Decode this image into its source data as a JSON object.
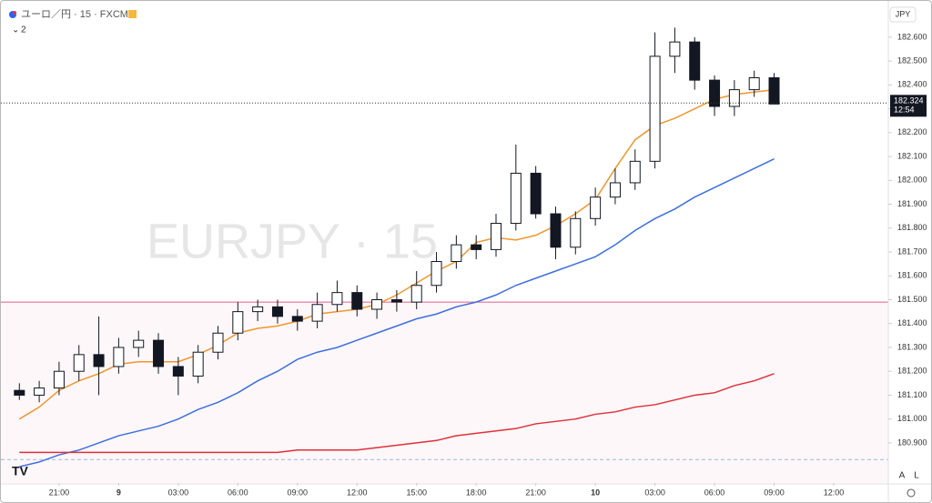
{
  "chart_data": {
    "type": "candlestick",
    "header": "ユーロ／円 · 15 · FXCM",
    "indicator_count": "2",
    "watermark": "EURJPY · 15",
    "currency": "JPY",
    "scale_buttons": [
      "A",
      "L"
    ],
    "countdown": "12:54",
    "x": [
      -5,
      -4,
      -3,
      -2,
      -1,
      0,
      1,
      2,
      3,
      4,
      5,
      6,
      7,
      8,
      9,
      10,
      11,
      12,
      13,
      14,
      15,
      16,
      17,
      18,
      19,
      20,
      21,
      22,
      23,
      24,
      25,
      26,
      27,
      28,
      29,
      30,
      31,
      32,
      33
    ],
    "open": [
      181.12,
      181.1,
      181.13,
      181.2,
      181.27,
      181.22,
      181.3,
      181.33,
      181.22,
      181.18,
      181.28,
      181.36,
      181.45,
      181.47,
      181.43,
      181.41,
      181.48,
      181.53,
      181.46,
      181.5,
      181.49,
      181.56,
      181.66,
      181.73,
      181.71,
      181.82,
      182.03,
      181.86,
      181.72,
      181.84,
      181.93,
      181.99,
      182.08,
      182.52,
      182.58,
      182.42,
      182.31,
      182.38,
      182.43
    ],
    "high": [
      181.15,
      181.16,
      181.24,
      181.31,
      181.43,
      181.34,
      181.37,
      181.36,
      181.26,
      181.31,
      181.39,
      181.49,
      181.5,
      181.5,
      181.46,
      181.53,
      181.58,
      181.56,
      181.53,
      181.54,
      181.62,
      181.7,
      181.77,
      181.77,
      181.86,
      182.15,
      182.06,
      181.89,
      181.87,
      181.97,
      182.05,
      182.13,
      182.62,
      182.64,
      182.6,
      182.44,
      182.42,
      182.46,
      182.45
    ],
    "low": [
      181.08,
      181.07,
      181.1,
      181.16,
      181.1,
      181.19,
      181.26,
      181.19,
      181.1,
      181.15,
      181.25,
      181.33,
      181.41,
      181.4,
      181.37,
      181.38,
      181.45,
      181.43,
      181.42,
      181.45,
      181.46,
      181.53,
      181.63,
      181.67,
      181.68,
      181.79,
      181.84,
      181.67,
      181.69,
      181.81,
      181.9,
      181.96,
      182.05,
      182.45,
      182.38,
      182.27,
      182.27,
      182.35,
      182.32
    ],
    "close": [
      181.1,
      181.13,
      181.2,
      181.27,
      181.22,
      181.3,
      181.33,
      181.22,
      181.18,
      181.28,
      181.36,
      181.45,
      181.47,
      181.43,
      181.41,
      181.48,
      181.53,
      181.46,
      181.5,
      181.49,
      181.56,
      181.66,
      181.73,
      181.71,
      181.82,
      182.03,
      181.86,
      181.72,
      181.84,
      181.93,
      181.99,
      182.08,
      182.52,
      182.58,
      182.42,
      182.31,
      182.38,
      182.43,
      182.32
    ],
    "up_color": "#ffffff",
    "down_color": "#131722",
    "lines": [
      {
        "color": "#f0962e",
        "values": [
          181.0,
          181.05,
          181.12,
          181.16,
          181.19,
          181.23,
          181.24,
          181.24,
          181.24,
          181.27,
          181.31,
          181.36,
          181.38,
          181.39,
          181.41,
          181.44,
          181.45,
          181.46,
          181.48,
          181.52,
          181.57,
          181.62,
          181.66,
          181.74,
          181.76,
          181.75,
          181.77,
          181.81,
          181.86,
          181.92,
          182.05,
          182.17,
          182.23,
          182.26,
          182.3,
          182.34,
          182.36,
          182.37,
          182.38
        ]
      },
      {
        "color": "#3d6fe0",
        "values": [
          180.8,
          180.82,
          180.85,
          180.87,
          180.9,
          180.93,
          180.95,
          180.97,
          181.0,
          181.04,
          181.07,
          181.11,
          181.16,
          181.2,
          181.25,
          181.28,
          181.3,
          181.33,
          181.36,
          181.39,
          181.42,
          181.44,
          181.47,
          181.49,
          181.52,
          181.56,
          181.59,
          181.62,
          181.65,
          181.68,
          181.73,
          181.79,
          181.84,
          181.88,
          181.93,
          181.97,
          182.01,
          182.05,
          182.09
        ]
      },
      {
        "color": "#e0303a",
        "values": [
          180.86,
          180.86,
          180.86,
          180.86,
          180.86,
          180.86,
          180.86,
          180.86,
          180.86,
          180.86,
          180.86,
          180.86,
          180.86,
          180.86,
          180.87,
          180.87,
          180.87,
          180.87,
          180.88,
          180.89,
          180.9,
          180.91,
          180.93,
          180.94,
          180.95,
          180.96,
          180.98,
          180.99,
          181.0,
          181.02,
          181.03,
          181.05,
          181.06,
          181.08,
          181.1,
          181.11,
          181.14,
          181.16,
          181.19
        ]
      }
    ],
    "zone_level": 181.49,
    "zone_color": "#e05c8a",
    "dashed_level": 180.83,
    "last_price": 182.324,
    "xlim": [
      -5.7,
      38.75
    ],
    "ylim": [
      180.732,
      182.733
    ],
    "xticks": [
      {
        "value": -3,
        "label": "21:00"
      },
      {
        "value": 0,
        "label": "9"
      },
      {
        "value": 3,
        "label": "03:00"
      },
      {
        "value": 6,
        "label": "06:00"
      },
      {
        "value": 9,
        "label": "09:00"
      },
      {
        "value": 12,
        "label": "12:00"
      },
      {
        "value": 15,
        "label": "15:00"
      },
      {
        "value": 18,
        "label": "18:00"
      },
      {
        "value": 21,
        "label": "21:00"
      },
      {
        "value": 24,
        "label": "10"
      },
      {
        "value": 27,
        "label": "03:00"
      },
      {
        "value": 30,
        "label": "06:00"
      },
      {
        "value": 33,
        "label": "09:00"
      },
      {
        "value": 36,
        "label": "12:00"
      }
    ],
    "yticks": [
      {
        "value": 180.9,
        "label": "180.900"
      },
      {
        "value": 181.0,
        "label": "181.000"
      },
      {
        "value": 181.1,
        "label": "181.100"
      },
      {
        "value": 181.2,
        "label": "181.200"
      },
      {
        "value": 181.3,
        "label": "181.300"
      },
      {
        "value": 181.4,
        "label": "181.400"
      },
      {
        "value": 181.5,
        "label": "181.500"
      },
      {
        "value": 181.6,
        "label": "181.600"
      },
      {
        "value": 181.7,
        "label": "181.700"
      },
      {
        "value": 181.8,
        "label": "181.800"
      },
      {
        "value": 181.9,
        "label": "181.900"
      },
      {
        "value": 182.0,
        "label": "182.000"
      },
      {
        "value": 182.1,
        "label": "182.100"
      },
      {
        "value": 182.2,
        "label": "182.200"
      },
      {
        "value": 182.3,
        "label": "182.300"
      },
      {
        "value": 182.4,
        "label": "182.400"
      },
      {
        "value": 182.5,
        "label": "182.500"
      },
      {
        "value": 182.6,
        "label": "182.600"
      }
    ]
  }
}
